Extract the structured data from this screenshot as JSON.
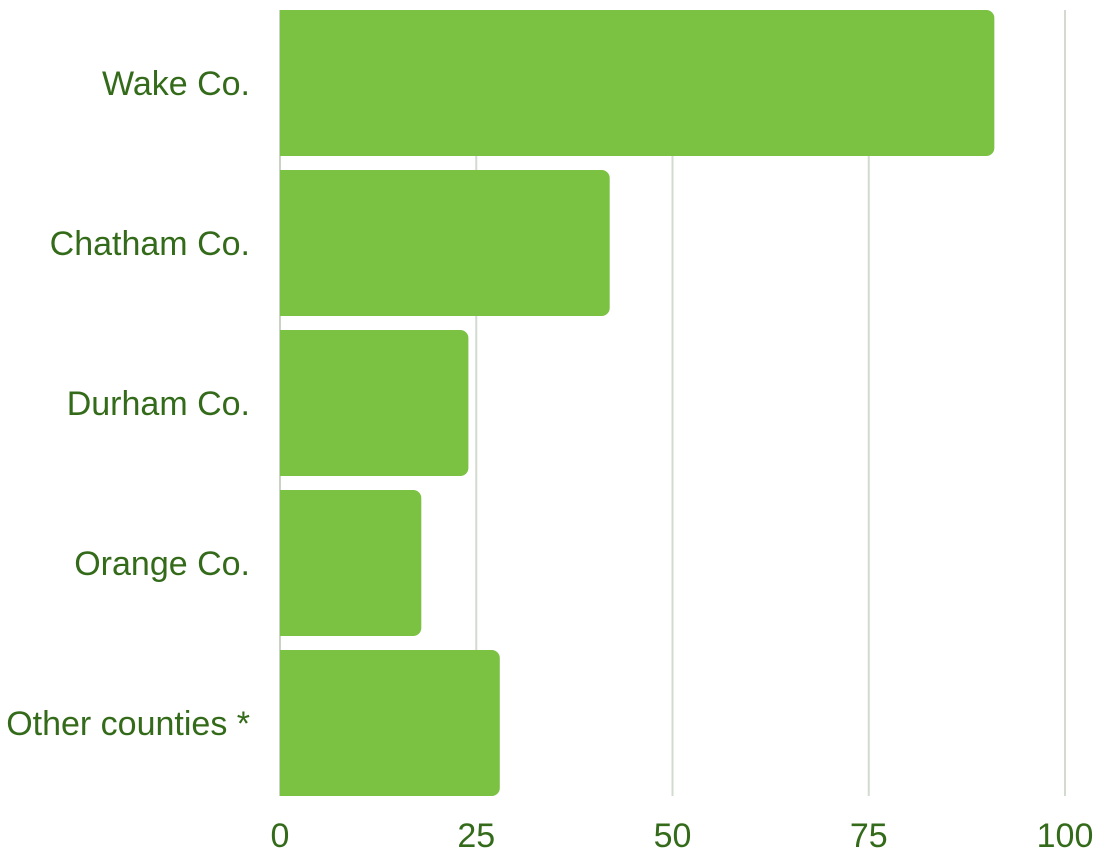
{
  "chart_data": {
    "type": "bar",
    "orientation": "horizontal",
    "title": "",
    "xlabel": "",
    "ylabel": "",
    "categories": [
      "Wake Co.",
      "Chatham Co.",
      "Durham Co.",
      "Orange Co.",
      "Other counties *"
    ],
    "values": [
      91,
      42,
      24,
      18,
      28
    ],
    "xlim": [
      0,
      100
    ],
    "xticks": [
      0,
      25,
      50,
      75,
      100
    ],
    "grid": true,
    "legend": "none",
    "colors": {
      "bar": "#7bc243",
      "label": "#346b1a",
      "grid": "#d3dbd0",
      "axis": "#c9d3c5"
    }
  }
}
